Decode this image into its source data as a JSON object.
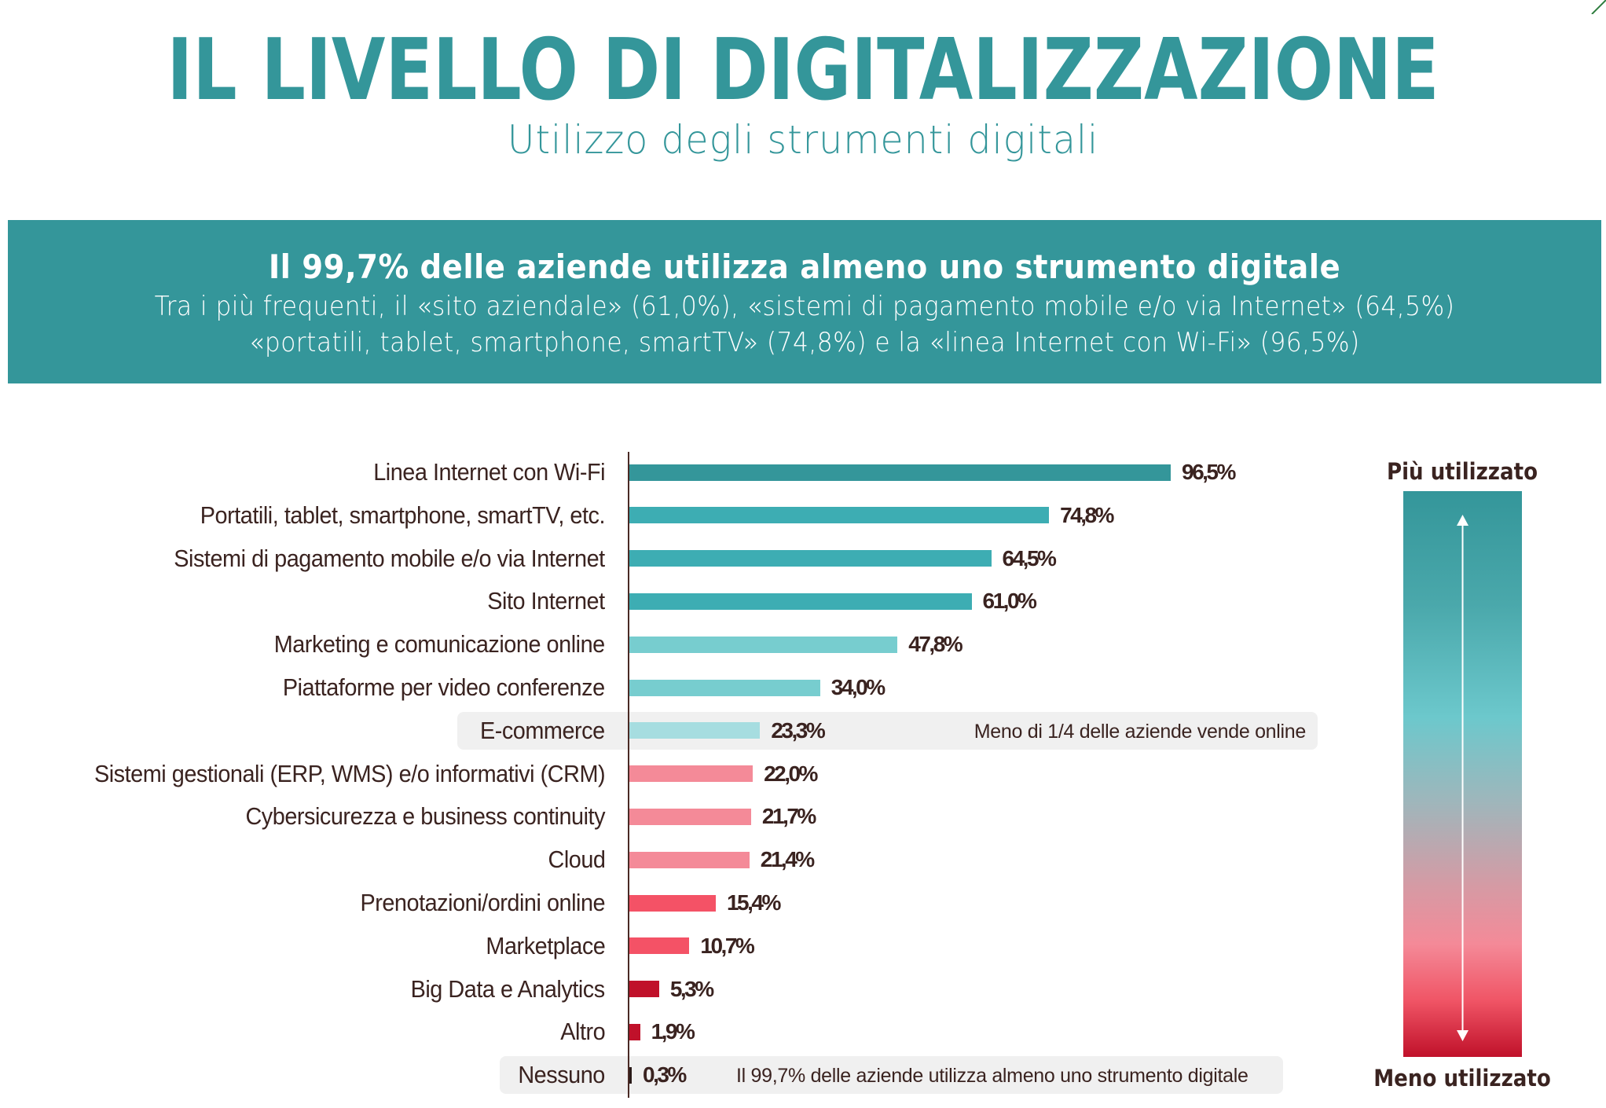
{
  "header": {
    "title": "IL LIVELLO DI DIGITALIZZAZIONE",
    "subtitle": "Utilizzo degli strumenti digitali"
  },
  "banner": {
    "headline": "Il 99,7% delle aziende utilizza almeno uno strumento digitale",
    "line1": "Tra i più frequenti, il «sito aziendale» (61,0%), «sistemi di pagamento mobile e/o via Internet» (64,5%)",
    "line2": "«portatili, tablet, smartphone, smartTV» (74,8%) e la «linea Internet con Wi-Fi» (96,5%)",
    "color": "#34969a"
  },
  "legend": {
    "top_label": "Più utilizzato",
    "bottom_label": "Meno utilizzato",
    "icon": "double-arrow-vertical-icon"
  },
  "chart_data": {
    "type": "bar",
    "orientation": "horizontal",
    "title": "Utilizzo degli strumenti digitali",
    "xlabel": "",
    "ylabel": "",
    "xlim": [
      0,
      100
    ],
    "unit": "%",
    "grid": false,
    "categories": [
      "Linea Internet con Wi-Fi",
      "Portatili, tablet, smartphone, smartTV, etc.",
      "Sistemi di pagamento mobile e/o via Internet",
      "Sito Internet",
      "Marketing e comunicazione online",
      "Piattaforme per video conferenze",
      "E-commerce",
      "Sistemi gestionali (ERP, WMS) e/o informativi (CRM)",
      "Cybersicurezza e business continuity",
      "Cloud",
      "Prenotazioni/ordini online",
      "Marketplace",
      "Big Data e Analytics",
      "Altro",
      "Nessuno"
    ],
    "values": [
      96.5,
      74.8,
      64.5,
      61.0,
      47.8,
      34.0,
      23.3,
      22.0,
      21.7,
      21.4,
      15.4,
      10.7,
      5.3,
      1.9,
      0.3
    ],
    "value_labels": [
      "96,5%",
      "74,8%",
      "64,5%",
      "61,0%",
      "47,8%",
      "34,0%",
      "23,3%",
      "22,0%",
      "21,7%",
      "21,4%",
      "15,4%",
      "10,7%",
      "5,3%",
      "1,9%",
      "0,3%"
    ],
    "bar_colors": [
      "#34969a",
      "#3dadb3",
      "#3dadb3",
      "#3dadb3",
      "#77cdcf",
      "#77cdcf",
      "#a6dde0",
      "#f48a98",
      "#f48a98",
      "#f48a98",
      "#f45266",
      "#f45266",
      "#c0112a",
      "#c0112a",
      "#2a1a18"
    ],
    "annotations": [
      {
        "category": "E-commerce",
        "text": "Meno di 1/4 delle aziende vende online",
        "highlight": true
      },
      {
        "category": "Nessuno",
        "text": "Il 99,7% delle aziende utilizza almeno uno strumento digitale",
        "highlight": true
      }
    ]
  }
}
